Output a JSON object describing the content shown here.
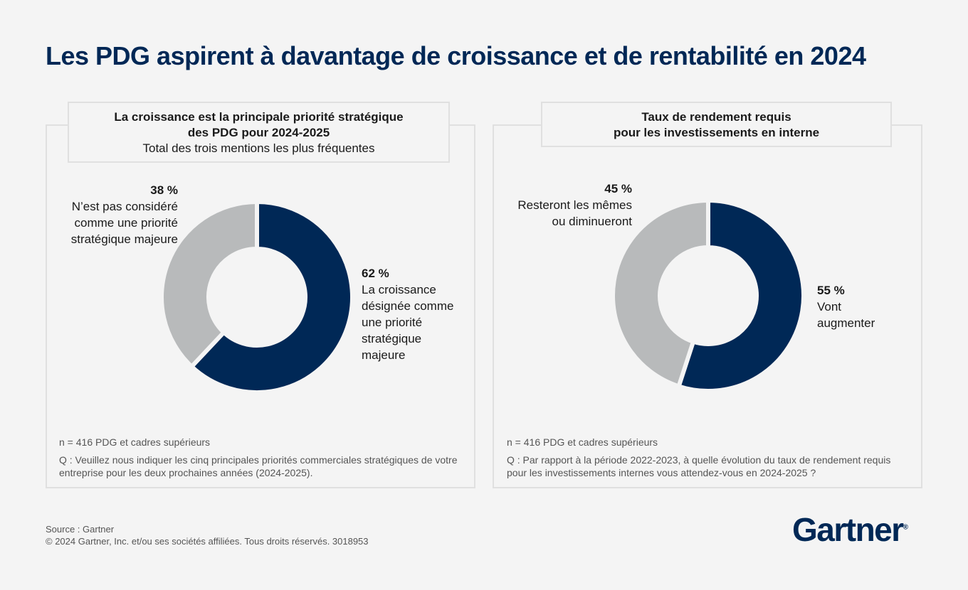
{
  "title": "Les PDG aspirent à davantage de croissance et de rentabilité en 2024",
  "colors": {
    "navy": "#002856",
    "grey": "#b8babb",
    "panel_border": "#e0e0e0"
  },
  "chart_data": [
    {
      "type": "pie",
      "title_line1": "La croissance est la principale priorité stratégique",
      "title_line2": "des PDG pour 2024-2025",
      "subtitle": "Total des trois mentions les plus fréquentes",
      "slices": [
        {
          "value": 62,
          "label_pct": "62 %",
          "label": "La croissance\ndésignée comme\nune priorité\nstratégique\nmajeure",
          "color": "#002856"
        },
        {
          "value": 38,
          "label_pct": "38 %",
          "label": "N’est pas considéré\ncomme une priorité\nstratégique majeure",
          "color": "#b8babb"
        }
      ],
      "n_note": "n = 416 PDG et cadres supérieurs",
      "question": "Q : Veuillez nous indiquer les cinq principales priorités commerciales stratégiques de votre entreprise pour les deux prochaines années (2024-2025)."
    },
    {
      "type": "pie",
      "title_line1": "Taux de rendement requis",
      "title_line2": "pour les investissements en interne",
      "slices": [
        {
          "value": 55,
          "label_pct": "55 %",
          "label": "Vont\naugmenter",
          "color": "#002856"
        },
        {
          "value": 45,
          "label_pct": "45 %",
          "label": "Resteront les mêmes\nou diminueront",
          "color": "#b8babb"
        }
      ],
      "n_note": "n = 416 PDG et cadres supérieurs",
      "question": "Q : Par rapport à la période 2022-2023, à quelle évolution du taux de rendement requis pour les investissements internes vous attendez-vous en 2024-2025 ?"
    }
  ],
  "footer": {
    "source": "Source : Gartner",
    "copyright": "© 2024 Gartner, Inc. et/ou ses sociétés affiliées. Tous droits réservés. 3018953"
  },
  "logo": {
    "text": "Gartner",
    "mark": "®"
  }
}
